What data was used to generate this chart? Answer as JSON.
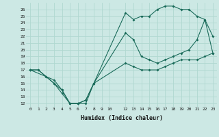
{
  "xlabel": "Humidex (Indice chaleur)",
  "ylabel": "",
  "bg_color": "#cce8e4",
  "line_color": "#1a6b5a",
  "grid_color": "#b0d8d0",
  "ylim": [
    11.5,
    27
  ],
  "xlim": [
    -0.5,
    23.5
  ],
  "yticks": [
    12,
    13,
    14,
    15,
    16,
    17,
    18,
    19,
    20,
    21,
    22,
    23,
    24,
    25,
    26
  ],
  "xticks": [
    0,
    1,
    2,
    3,
    4,
    5,
    6,
    7,
    8,
    9,
    10,
    12,
    13,
    14,
    15,
    16,
    17,
    18,
    19,
    20,
    21,
    22,
    23
  ],
  "line1_x": [
    0,
    1,
    2,
    3,
    4,
    5,
    6,
    7,
    8,
    12,
    13,
    14,
    15,
    16,
    17,
    18,
    19,
    20,
    21,
    22,
    23
  ],
  "line1_y": [
    17.0,
    17.0,
    16.0,
    15.0,
    14.0,
    12.0,
    12.0,
    12.0,
    15.0,
    25.5,
    24.5,
    25.0,
    25.0,
    26.0,
    26.5,
    26.5,
    26.0,
    26.0,
    25.0,
    24.5,
    19.5
  ],
  "line2_x": [
    0,
    1,
    3,
    4,
    5,
    6,
    7,
    8,
    12,
    13,
    14,
    15,
    16,
    17,
    18,
    19,
    20,
    21,
    22,
    23
  ],
  "line2_y": [
    17.0,
    17.0,
    15.0,
    13.5,
    12.0,
    12.0,
    12.5,
    15.0,
    22.5,
    21.5,
    19.0,
    18.5,
    18.0,
    18.5,
    19.0,
    19.5,
    20.0,
    21.5,
    24.5,
    22.0
  ],
  "line3_x": [
    0,
    2,
    3,
    4,
    5,
    6,
    7,
    8,
    12,
    13,
    14,
    15,
    16,
    17,
    18,
    19,
    20,
    21,
    22,
    23
  ],
  "line3_y": [
    17.0,
    16.0,
    15.5,
    14.0,
    12.0,
    12.0,
    12.5,
    15.0,
    18.0,
    17.5,
    17.0,
    17.0,
    17.0,
    17.5,
    18.0,
    18.5,
    18.5,
    18.5,
    19.0,
    19.5
  ]
}
